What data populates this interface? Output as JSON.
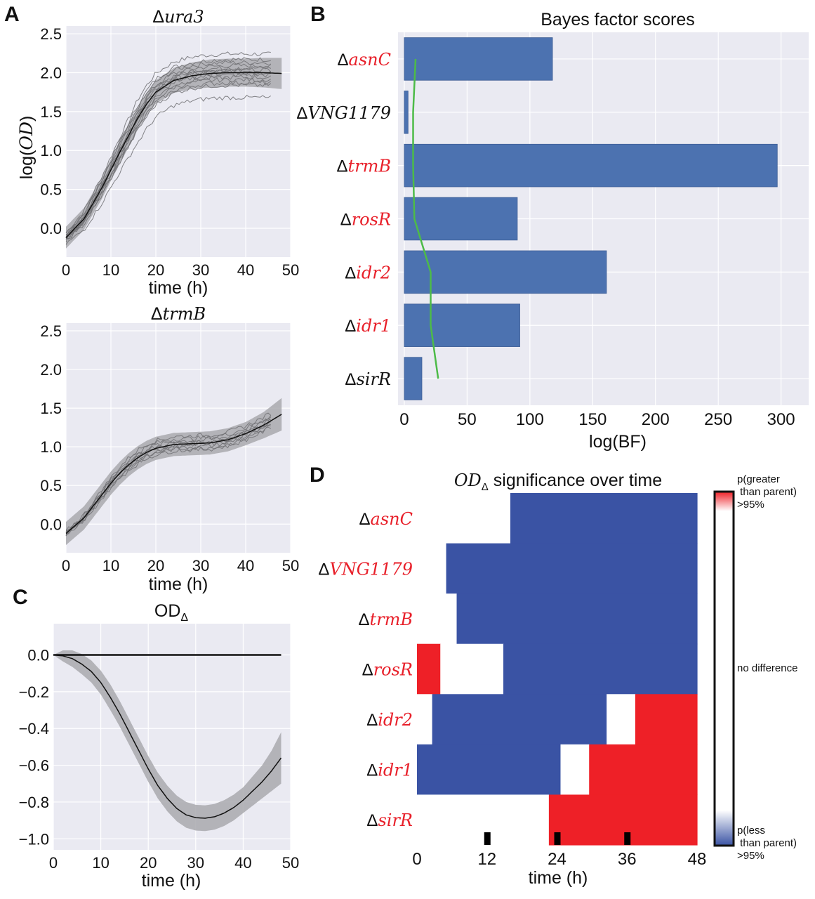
{
  "colors": {
    "plot_bg": "#EAEAF2",
    "grid": "#FFFFFF",
    "bar": "#4C72B0",
    "threshold_line": "#4DBB48",
    "band": "#A9A9AE",
    "replicate": "#6E6E72",
    "mean": "#111111",
    "heat_blue": "#3A53A4",
    "heat_red": "#EE2027",
    "heat_white": "#FFFFFF",
    "label_red": "#E8202A",
    "label_black": "#111111"
  },
  "panels": {
    "A": "A",
    "B": "B",
    "C": "C",
    "D": "D"
  },
  "chart_data": [
    {
      "id": "A-ura3",
      "type": "line",
      "title_delta": "Δ",
      "title": "ura3",
      "xlabel": "time (h)",
      "ylabel": "log(OD)",
      "ylabel_italic_part": "OD",
      "xlim": [
        0,
        50
      ],
      "ylim": [
        -0.37,
        2.6
      ],
      "xticks": [
        "0",
        "10",
        "20",
        "30",
        "40",
        "50"
      ],
      "xtick_values": [
        0,
        10,
        20,
        30,
        40,
        50
      ],
      "yticks": [
        "0.0",
        "0.5",
        "1.0",
        "1.5",
        "2.0",
        "2.5"
      ],
      "ytick_values": [
        0.0,
        0.5,
        1.0,
        1.5,
        2.0,
        2.5
      ],
      "grid": true,
      "model": {
        "kind": "logistic",
        "start": -0.12,
        "plateau": 2.0,
        "midpoint": 13.5,
        "rate": 0.24
      },
      "mean_x": [
        0,
        4,
        8,
        10,
        12,
        14,
        16,
        18,
        20,
        24,
        28,
        32,
        36,
        40,
        44,
        48
      ],
      "mean_y": [
        -0.12,
        0.12,
        0.52,
        0.75,
        0.98,
        1.2,
        1.42,
        1.6,
        1.75,
        1.9,
        1.96,
        1.99,
        2.0,
        2.0,
        2.0,
        1.99
      ],
      "band_halfwidth": [
        0.14,
        0.14,
        0.14,
        0.14,
        0.15,
        0.15,
        0.15,
        0.15,
        0.15,
        0.16,
        0.17,
        0.18,
        0.18,
        0.18,
        0.19,
        0.2
      ],
      "replicate_offsets": [
        0.24,
        0.17,
        0.13,
        0.09,
        0.06,
        0.04,
        0.02,
        0.0,
        -0.03,
        -0.06,
        -0.09,
        -0.13,
        -0.16,
        -0.32
      ],
      "replicate_xmax": 46
    },
    {
      "id": "A-trmB",
      "type": "line",
      "title_delta": "Δ",
      "title": "trmB",
      "xlabel": "time (h)",
      "xlim": [
        0,
        50
      ],
      "ylim": [
        -0.37,
        2.6
      ],
      "xticks": [
        "0",
        "10",
        "20",
        "30",
        "40",
        "50"
      ],
      "xtick_values": [
        0,
        10,
        20,
        30,
        40,
        50
      ],
      "yticks": [
        "0.0",
        "0.5",
        "1.0",
        "1.5",
        "2.0",
        "2.5"
      ],
      "ytick_values": [
        0.0,
        0.5,
        1.0,
        1.5,
        2.0,
        2.5
      ],
      "grid": true,
      "mean_x": [
        0,
        4,
        8,
        10,
        12,
        14,
        16,
        18,
        20,
        24,
        28,
        32,
        36,
        40,
        44,
        48
      ],
      "mean_y": [
        -0.12,
        0.08,
        0.38,
        0.53,
        0.66,
        0.77,
        0.86,
        0.93,
        0.98,
        1.03,
        1.04,
        1.05,
        1.09,
        1.17,
        1.28,
        1.42
      ],
      "band_halfwidth": [
        0.15,
        0.15,
        0.15,
        0.15,
        0.15,
        0.15,
        0.15,
        0.15,
        0.15,
        0.15,
        0.15,
        0.15,
        0.15,
        0.15,
        0.17,
        0.21
      ],
      "replicate_offsets": [
        0.1,
        0.07,
        0.04,
        0.02,
        0.0,
        -0.02,
        -0.04,
        -0.06,
        -0.08
      ],
      "replicate_xmax": 46
    },
    {
      "id": "B",
      "type": "bar",
      "orientation": "horizontal",
      "title": "Bayes factor scores",
      "xlabel": "log(BF)",
      "xlim": [
        -5,
        322
      ],
      "xticks": [
        "0",
        "50",
        "100",
        "150",
        "200",
        "250",
        "300"
      ],
      "xtick_values": [
        0,
        50,
        100,
        150,
        200,
        250,
        300
      ],
      "grid": true,
      "categories": [
        "asnC",
        "VNG1179",
        "trmB",
        "rosR",
        "idr2",
        "idr1",
        "sirR"
      ],
      "category_label_colors": [
        "red",
        "black",
        "red",
        "red",
        "red",
        "red",
        "black"
      ],
      "values": [
        118,
        3,
        297,
        90,
        161,
        92,
        14
      ],
      "threshold_series": {
        "name": "threshold",
        "values": [
          9,
          7,
          7,
          8,
          21,
          21,
          27
        ]
      }
    },
    {
      "id": "C",
      "type": "line",
      "title": "OD",
      "title_sub": "Δ",
      "xlabel": "time (h)",
      "xlim": [
        0,
        50
      ],
      "ylim": [
        -1.06,
        0.17
      ],
      "xticks": [
        "0",
        "10",
        "20",
        "30",
        "40",
        "50"
      ],
      "xtick_values": [
        0,
        10,
        20,
        30,
        40,
        50
      ],
      "yticks": [
        "0.0",
        "−0.2",
        "−0.4",
        "−0.6",
        "−0.8",
        "−1.0"
      ],
      "ytick_values": [
        0.0,
        -0.2,
        -0.4,
        -0.6,
        -0.8,
        -1.0
      ],
      "grid": true,
      "zero_line": 0.0,
      "mean_x": [
        0,
        2,
        4,
        6,
        8,
        10,
        12,
        14,
        16,
        18,
        20,
        22,
        24,
        26,
        28,
        30,
        32,
        34,
        36,
        38,
        40,
        42,
        44,
        46,
        48
      ],
      "mean_y": [
        0.0,
        -0.005,
        -0.02,
        -0.05,
        -0.09,
        -0.15,
        -0.23,
        -0.32,
        -0.42,
        -0.52,
        -0.62,
        -0.71,
        -0.78,
        -0.835,
        -0.87,
        -0.885,
        -0.888,
        -0.88,
        -0.86,
        -0.83,
        -0.79,
        -0.74,
        -0.69,
        -0.63,
        -0.56
      ],
      "band_halfwidth": [
        0.0,
        0.03,
        0.045,
        0.055,
        0.06,
        0.065,
        0.07,
        0.07,
        0.07,
        0.07,
        0.07,
        0.07,
        0.07,
        0.07,
        0.07,
        0.07,
        0.07,
        0.07,
        0.07,
        0.07,
        0.07,
        0.08,
        0.09,
        0.11,
        0.14
      ]
    },
    {
      "id": "D",
      "type": "heatmap",
      "title_italic": "OD",
      "title_sub": "Δ",
      "title_rest": " significance over time",
      "xlabel": "time (h)",
      "xlim": [
        0,
        48
      ],
      "xticks": [
        "0",
        "12",
        "24",
        "36",
        "48"
      ],
      "xtick_values": [
        0,
        12,
        24,
        36,
        48
      ],
      "rows": [
        "asnC",
        "VNG1179",
        "trmB",
        "rosR",
        "idr2",
        "idr1",
        "sirR"
      ],
      "row_label_colors": [
        "red",
        "red",
        "red",
        "red",
        "red",
        "red",
        "red"
      ],
      "segments": [
        [
          {
            "from": 0,
            "to": 16,
            "state": "none"
          },
          {
            "from": 16,
            "to": 48,
            "state": "less"
          }
        ],
        [
          {
            "from": 0,
            "to": 5,
            "state": "none"
          },
          {
            "from": 5,
            "to": 48,
            "state": "less"
          }
        ],
        [
          {
            "from": 0,
            "to": 6.8,
            "state": "none"
          },
          {
            "from": 6.8,
            "to": 48,
            "state": "less"
          }
        ],
        [
          {
            "from": 0,
            "to": 4,
            "state": "greater"
          },
          {
            "from": 4,
            "to": 14.8,
            "state": "none"
          },
          {
            "from": 14.8,
            "to": 48,
            "state": "less"
          }
        ],
        [
          {
            "from": 0,
            "to": 2.6,
            "state": "none"
          },
          {
            "from": 2.6,
            "to": 32.5,
            "state": "less"
          },
          {
            "from": 32.5,
            "to": 37.4,
            "state": "none"
          },
          {
            "from": 37.4,
            "to": 48,
            "state": "greater"
          }
        ],
        [
          {
            "from": 0,
            "to": 24.6,
            "state": "less"
          },
          {
            "from": 24.6,
            "to": 29.5,
            "state": "none"
          },
          {
            "from": 29.5,
            "to": 48,
            "state": "greater"
          }
        ],
        [
          {
            "from": 0,
            "to": 22.6,
            "state": "none"
          },
          {
            "from": 22.6,
            "to": 48,
            "state": "greater"
          }
        ]
      ],
      "time_markers": [
        12,
        24,
        36
      ],
      "colorbar": {
        "top_label_1": "p(greater",
        "top_label_2": " than parent)",
        "top_label_3": ">95%",
        "mid_label": "no difference",
        "bottom_label_1": "p(less",
        "bottom_label_2": " than parent)",
        "bottom_label_3": ">95%"
      }
    }
  ]
}
